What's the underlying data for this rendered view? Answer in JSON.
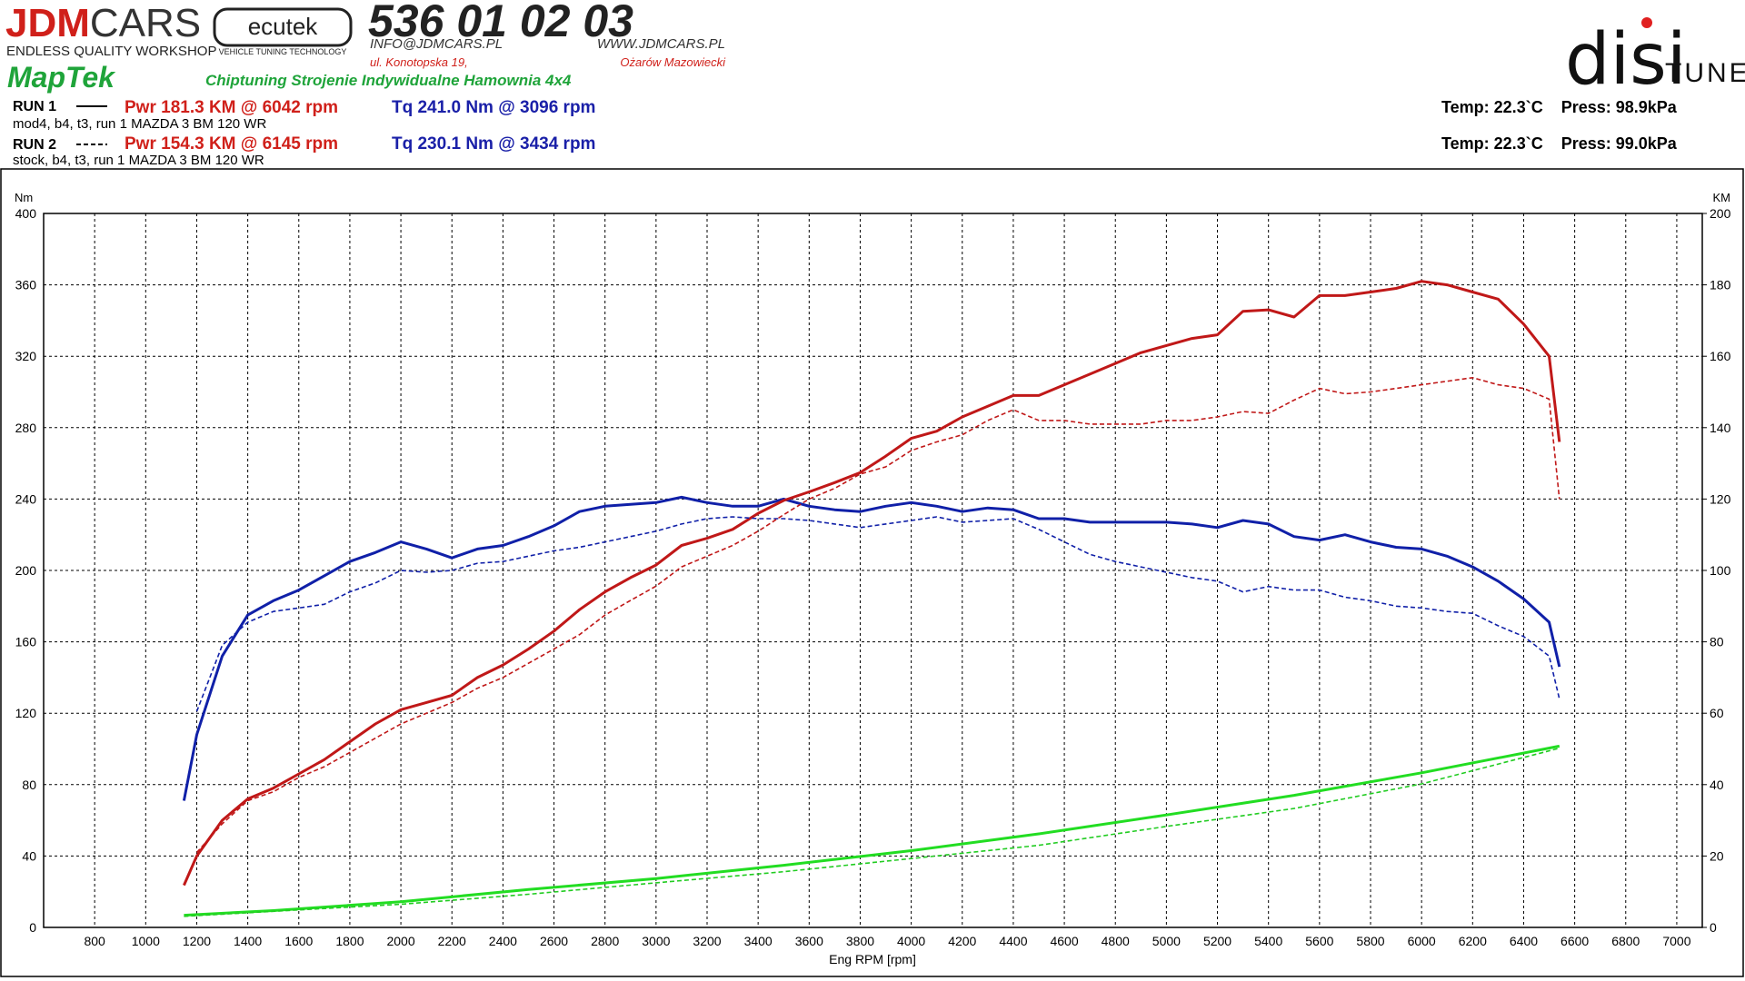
{
  "header": {
    "logo_jdm": "JDM",
    "logo_cars": "CARS",
    "logo_tagline": "ENDLESS QUALITY WORKSHOP",
    "ecutek": "ecutek",
    "ecutek_tagline": "VEHICLE TUNING TECHNOLOGY",
    "phone": "536 01 02 03",
    "email": "INFO@JDMCARS.PL",
    "web": "WWW.JDMCARS.PL",
    "address": "ul. Konotopska 19,",
    "city": "Ożarów Mazowiecki",
    "maptek": "MapTek",
    "services": "Chiptuning Strojenie Indywidualne Hamownia 4x4",
    "disi": "disi",
    "tune": "TUNE"
  },
  "runs": [
    {
      "label": "RUN 1",
      "pwr": "Pwr  181.3 KM @ 6042 rpm",
      "tq": "Tq 241.0 Nm @ 3096 rpm",
      "desc": "mod4, b4, t3, run 1 MAZDA 3 BM 120 WR",
      "env": "Temp: 22.3`C    Press: 98.9kPa"
    },
    {
      "label": "RUN 2",
      "pwr": "Pwr  154.3 KM @ 6145 rpm",
      "tq": "Tq 230.1 Nm @ 3434 rpm",
      "desc": "stock, b4, t3, run 1 MAZDA 3 BM 120 WR",
      "env": "Temp: 22.3`C    Press: 99.0kPa"
    }
  ],
  "chart_data": {
    "type": "line",
    "x_label": "Eng RPM [rpm]",
    "y_label": "Nm",
    "y2_label": "KM",
    "xlim": [
      600,
      7100
    ],
    "xticks": [
      800,
      1000,
      1200,
      1400,
      1600,
      1800,
      2000,
      2200,
      2400,
      2600,
      2800,
      3000,
      3200,
      3400,
      3600,
      3800,
      4000,
      4200,
      4400,
      4600,
      4800,
      5000,
      5200,
      5400,
      5600,
      5800,
      6000,
      6200,
      6400,
      6600,
      6800,
      7000
    ],
    "ylim": [
      0,
      400
    ],
    "yticks": [
      0,
      40,
      80,
      120,
      160,
      200,
      240,
      280,
      320,
      360,
      400
    ],
    "y2lim": [
      0,
      200
    ],
    "y2ticks": [
      0,
      20,
      40,
      60,
      80,
      100,
      120,
      140,
      160,
      180,
      200
    ],
    "grid": true,
    "series": [
      {
        "color": "#1020a8",
        "dash": false,
        "axis": "y",
        "x": [
          1150,
          1200,
          1300,
          1400,
          1500,
          1600,
          1700,
          1800,
          1900,
          2000,
          2100,
          2200,
          2300,
          2400,
          2500,
          2600,
          2700,
          2800,
          2900,
          3000,
          3100,
          3200,
          3300,
          3400,
          3500,
          3600,
          3700,
          3800,
          3900,
          4000,
          4100,
          4200,
          4300,
          4400,
          4500,
          4600,
          4700,
          4800,
          4900,
          5000,
          5100,
          5200,
          5300,
          5400,
          5500,
          5600,
          5700,
          5800,
          5900,
          6000,
          6100,
          6200,
          6300,
          6400,
          6500,
          6540
        ],
        "values": [
          71,
          108,
          152,
          175,
          183,
          189,
          197,
          205,
          210,
          216,
          212,
          207,
          212,
          214,
          219,
          225,
          233,
          236,
          237,
          238,
          241,
          238,
          236,
          236,
          240,
          236,
          234,
          233,
          236,
          238,
          236,
          233,
          235,
          234,
          229,
          229,
          227,
          227,
          227,
          227,
          226,
          224,
          228,
          226,
          219,
          217,
          220,
          216,
          213,
          212,
          208,
          202,
          194,
          184,
          171,
          146
        ]
      },
      {
        "color": "#c01818",
        "dash": false,
        "axis": "y2",
        "x": [
          1150,
          1200,
          1300,
          1400,
          1500,
          1600,
          1700,
          1800,
          1900,
          2000,
          2100,
          2200,
          2300,
          2400,
          2500,
          2600,
          2700,
          2800,
          2900,
          3000,
          3100,
          3200,
          3300,
          3400,
          3500,
          3600,
          3700,
          3800,
          3900,
          4000,
          4100,
          4200,
          4300,
          4400,
          4500,
          4600,
          4700,
          4800,
          4900,
          5000,
          5100,
          5200,
          5300,
          5400,
          5500,
          5600,
          5700,
          5800,
          5900,
          6000,
          6100,
          6200,
          6300,
          6400,
          6500,
          6540
        ],
        "values": [
          11.8,
          20,
          30,
          36,
          39,
          43,
          47,
          52,
          57,
          61,
          63,
          65,
          70,
          73.5,
          78,
          83,
          89,
          94,
          98,
          101.5,
          107,
          109,
          111.5,
          116,
          119.6,
          122,
          124.6,
          127.4,
          132,
          137,
          139,
          143,
          146,
          149,
          149,
          152,
          155,
          158,
          161,
          163,
          165,
          166,
          172.6,
          173,
          171,
          177,
          177,
          178,
          179,
          181,
          180,
          178,
          176,
          169,
          160,
          136
        ]
      },
      {
        "color": "#1020a8",
        "dash": true,
        "axis": "y",
        "x": [
          1200,
          1300,
          1400,
          1500,
          1600,
          1700,
          1800,
          1900,
          2000,
          2100,
          2200,
          2300,
          2400,
          2500,
          2600,
          2700,
          2800,
          2900,
          3000,
          3100,
          3200,
          3300,
          3400,
          3500,
          3600,
          3700,
          3800,
          3900,
          4000,
          4100,
          4200,
          4300,
          4400,
          4500,
          4600,
          4700,
          4800,
          4900,
          5000,
          5100,
          5200,
          5300,
          5400,
          5500,
          5600,
          5700,
          5800,
          5900,
          6000,
          6100,
          6200,
          6300,
          6400,
          6500,
          6540
        ],
        "values": [
          121,
          158,
          171,
          177,
          179,
          181,
          188,
          193,
          200,
          199,
          200,
          204,
          205,
          208,
          211,
          213,
          216,
          219,
          222,
          226,
          229,
          230,
          229,
          229,
          228,
          226,
          224,
          226,
          228,
          230,
          227,
          228,
          229,
          223,
          216,
          209,
          205,
          202,
          199,
          196,
          194,
          188,
          191,
          189,
          189,
          185,
          183,
          180,
          179,
          177,
          176,
          169,
          163,
          152,
          128
        ]
      },
      {
        "color": "#c01818",
        "dash": true,
        "axis": "y2",
        "x": [
          1200,
          1300,
          1400,
          1500,
          1600,
          1700,
          1800,
          1900,
          2000,
          2100,
          2200,
          2300,
          2400,
          2500,
          2600,
          2700,
          2800,
          2900,
          3000,
          3100,
          3200,
          3300,
          3400,
          3500,
          3600,
          3700,
          3800,
          3900,
          4000,
          4100,
          4200,
          4300,
          4400,
          4500,
          4600,
          4700,
          4800,
          4900,
          5000,
          5100,
          5200,
          5300,
          5400,
          5500,
          5600,
          5700,
          5800,
          5900,
          6000,
          6100,
          6200,
          6300,
          6400,
          6500,
          6540
        ],
        "values": [
          21,
          29,
          35.5,
          38,
          42,
          45,
          49,
          53,
          57,
          60,
          63,
          67,
          70,
          74,
          78,
          82,
          87.5,
          91.6,
          95.6,
          101,
          104,
          107,
          111,
          115.6,
          120,
          123,
          127,
          129,
          133.6,
          136,
          138,
          142,
          145,
          142,
          142,
          141,
          141,
          141,
          142,
          142,
          143,
          144.5,
          144,
          147.7,
          151,
          149.5,
          150,
          151,
          152,
          153,
          154,
          152,
          151,
          148,
          120
        ]
      },
      {
        "color": "#22dd22",
        "dash": false,
        "axis": "y2",
        "x": [
          1150,
          1500,
          2000,
          2500,
          3000,
          3500,
          4000,
          4500,
          5000,
          5500,
          6000,
          6540
        ],
        "values": [
          3.4,
          4.7,
          7.2,
          10.6,
          13.7,
          17.4,
          21.5,
          26.2,
          31.5,
          37,
          43.3,
          50.8
        ]
      },
      {
        "color": "#22cc22",
        "dash": true,
        "axis": "y2",
        "x": [
          1150,
          2000,
          2500,
          3000,
          3500,
          4000,
          4500,
          5000,
          5500,
          6000,
          6540
        ],
        "values": [
          3.1,
          6.5,
          9.3,
          12.5,
          15.6,
          19.3,
          23,
          28.3,
          33.3,
          40.2,
          50.2
        ]
      }
    ]
  }
}
